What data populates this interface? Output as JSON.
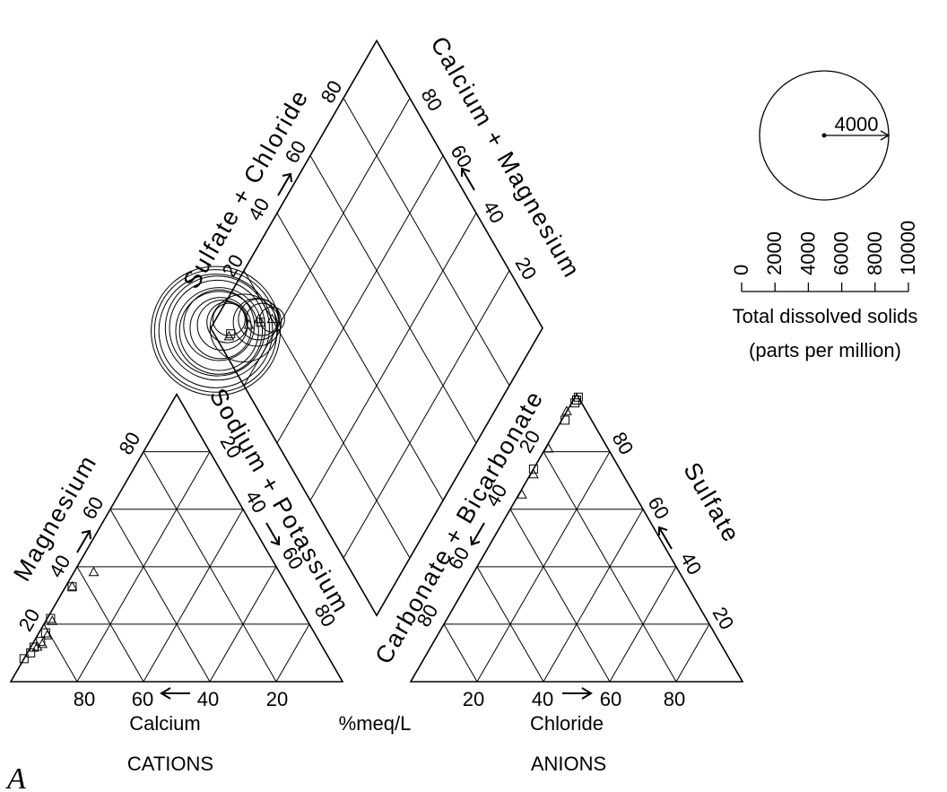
{
  "figure_letter": "A",
  "cations_caption": "CATIONS",
  "anions_caption": "ANIONS",
  "units_label": "%meq/L",
  "chart_data": {
    "type": "scatter",
    "subtype": "piper-trilinear",
    "cations": {
      "axes": {
        "calcium": {
          "label": "Calcium",
          "ticks": [
            "80",
            "60",
            "40",
            "20"
          ]
        },
        "magnesium": {
          "label": "Magnesium",
          "ticks": [
            "20",
            "40",
            "60",
            "80"
          ]
        },
        "sodium_potassium": {
          "label": "Sodium + Potassium",
          "ticks": [
            "20",
            "40",
            "60",
            "80"
          ]
        }
      },
      "points": [
        {
          "symbol": "triangle",
          "mg": 38,
          "na": 6
        },
        {
          "symbol": "square",
          "mg": 33,
          "na": 2
        },
        {
          "symbol": "triangle",
          "mg": 33,
          "na": 2
        },
        {
          "symbol": "square",
          "mg": 22,
          "na": 1
        },
        {
          "symbol": "triangle",
          "mg": 21,
          "na": 2
        },
        {
          "symbol": "square",
          "mg": 17,
          "na": 2
        },
        {
          "symbol": "triangle",
          "mg": 16,
          "na": 3
        },
        {
          "symbol": "square",
          "mg": 14,
          "na": 2
        },
        {
          "symbol": "triangle",
          "mg": 13,
          "na": 3
        },
        {
          "symbol": "square",
          "mg": 12,
          "na": 1
        },
        {
          "symbol": "triangle",
          "mg": 12,
          "na": 2
        },
        {
          "symbol": "square",
          "mg": 10,
          "na": 1
        },
        {
          "symbol": "square",
          "mg": 8,
          "na": 0
        }
      ]
    },
    "anions": {
      "axes": {
        "chloride": {
          "label": "Chloride",
          "ticks": [
            "20",
            "40",
            "60",
            "80"
          ]
        },
        "sulfate": {
          "label": "Sulfate",
          "ticks": [
            "20",
            "40",
            "60",
            "80"
          ]
        },
        "carbonate_bicarbonate": {
          "label": "Carbonate + Bicarbonate",
          "ticks": [
            "80",
            "60",
            "40",
            "20"
          ]
        }
      },
      "points": [
        {
          "symbol": "square",
          "so4": 99,
          "cl": 1
        },
        {
          "symbol": "square",
          "so4": 98,
          "cl": 1
        },
        {
          "symbol": "square",
          "so4": 97,
          "cl": 1
        },
        {
          "symbol": "triangle",
          "so4": 94,
          "cl": 0
        },
        {
          "symbol": "square",
          "so4": 91,
          "cl": 1
        },
        {
          "symbol": "triangle",
          "so4": 81,
          "cl": 1
        },
        {
          "symbol": "square",
          "so4": 74,
          "cl": 0
        },
        {
          "symbol": "triangle",
          "so4": 72,
          "cl": 1
        },
        {
          "symbol": "triangle",
          "so4": 65,
          "cl": 1
        }
      ]
    },
    "diamond": {
      "axes": {
        "sulfate_chloride": {
          "label": "Sulfate + Chloride",
          "ticks": [
            "20",
            "40",
            "60",
            "80"
          ]
        },
        "calcium_magnesium": {
          "label": "Calcium + Magnesium",
          "ticks": [
            "20",
            "40",
            "60",
            "80"
          ]
        }
      },
      "points": [
        {
          "symbol": "circle",
          "sc": 98,
          "cm": 99,
          "tds": 4000
        },
        {
          "symbol": "circle",
          "sc": 98,
          "cm": 99,
          "tds": 3600
        },
        {
          "symbol": "circle",
          "sc": 98,
          "cm": 99,
          "tds": 3100
        },
        {
          "symbol": "circle",
          "sc": 98,
          "cm": 98,
          "tds": 2600
        },
        {
          "symbol": "circle",
          "sc": 98,
          "cm": 98,
          "tds": 2200
        },
        {
          "symbol": "circle",
          "sc": 97,
          "cm": 98,
          "tds": 1800
        },
        {
          "symbol": "circle",
          "sc": 97,
          "cm": 98,
          "tds": 1500
        },
        {
          "symbol": "circle",
          "sc": 98,
          "cm": 97,
          "tds": 1200
        },
        {
          "symbol": "circle",
          "sc": 97,
          "cm": 97,
          "tds": 900
        },
        {
          "symbol": "circle",
          "sc": 97,
          "cm": 96,
          "tds": 600
        },
        {
          "symbol": "circle",
          "sc": 96,
          "cm": 94,
          "tds": 400
        },
        {
          "symbol": "circle",
          "sc": 96,
          "cm": 93,
          "tds": 250
        },
        {
          "symbol": "circle",
          "sc": 90,
          "cm": 90,
          "tds": 1100
        },
        {
          "symbol": "circle",
          "sc": 87,
          "cm": 85,
          "tds": 550
        },
        {
          "symbol": "circle",
          "sc": 87,
          "cm": 84,
          "tds": 400
        },
        {
          "symbol": "circle",
          "sc": 86,
          "cm": 83,
          "tds": 250
        },
        {
          "symbol": "circle",
          "sc": 83,
          "cm": 80,
          "tds": 150
        },
        {
          "symbol": "triangle",
          "sc": 93,
          "cm": 96
        },
        {
          "symbol": "square",
          "sc": 93,
          "cm": 95
        },
        {
          "symbol": "triangle",
          "sc": 89,
          "cm": 88
        },
        {
          "symbol": "triangle",
          "sc": 87,
          "cm": 84
        },
        {
          "symbol": "square",
          "sc": 86,
          "cm": 84
        },
        {
          "symbol": "triangle",
          "sc": 83,
          "cm": 80
        }
      ]
    },
    "legend": {
      "title": "Total dissolved solids",
      "subtitle": "(parts per million)",
      "example_value": "4000",
      "example_tds": 4000,
      "scale_ticks": [
        "0",
        "2000",
        "4000",
        "6000",
        "8000",
        "10000"
      ],
      "placement": "top-right"
    }
  }
}
